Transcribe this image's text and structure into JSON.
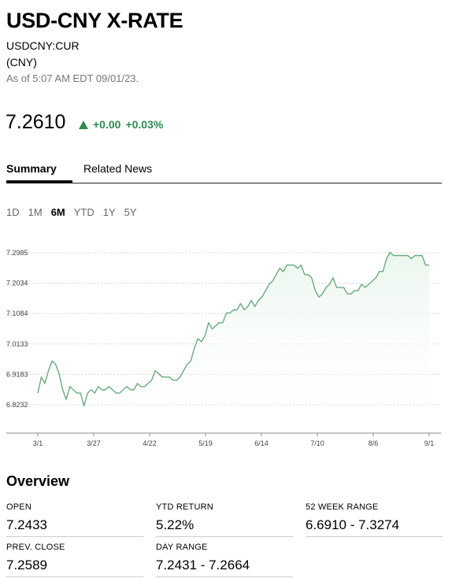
{
  "header": {
    "title": "USD-CNY X-RATE",
    "ticker": "USDCNY:CUR",
    "currency": "(CNY)",
    "as_of": "As of 5:07 AM EDT 09/01/23."
  },
  "quote": {
    "price": "7.2610",
    "change": "+0.00",
    "change_pct": "+0.03%",
    "up_color": "#2d8a4f",
    "direction_icon": "triangle-up-icon"
  },
  "tabs": [
    {
      "label": "Summary",
      "active": true
    },
    {
      "label": "Related News",
      "active": false
    }
  ],
  "ranges": [
    {
      "label": "1D",
      "active": false
    },
    {
      "label": "1M",
      "active": false
    },
    {
      "label": "6M",
      "active": true
    },
    {
      "label": "YTD",
      "active": false
    },
    {
      "label": "1Y",
      "active": false
    },
    {
      "label": "5Y",
      "active": false
    }
  ],
  "chart_data": {
    "type": "area",
    "ylim": [
      6.8,
      7.32
    ],
    "y_ticks": [
      "7.2985",
      "7.2034",
      "7.1084",
      "7.0133",
      "6.9183",
      "6.8232"
    ],
    "x_ticks": [
      "3/1",
      "3/27",
      "4/22",
      "5/19",
      "6/14",
      "7/10",
      "8/6",
      "9/1"
    ],
    "line_color": "#6aaa7e",
    "fill_color": "#eaf6ee",
    "grid": true,
    "series": [
      {
        "values": [
          6.86,
          6.91,
          6.89,
          6.93,
          6.96,
          6.95,
          6.92,
          6.87,
          6.84,
          6.88,
          6.87,
          6.86,
          6.86,
          6.82,
          6.86,
          6.87,
          6.86,
          6.88,
          6.87,
          6.87,
          6.88,
          6.87,
          6.86,
          6.86,
          6.87,
          6.88,
          6.87,
          6.87,
          6.89,
          6.88,
          6.88,
          6.89,
          6.9,
          6.93,
          6.92,
          6.91,
          6.91,
          6.91,
          6.9,
          6.9,
          6.91,
          6.93,
          6.95,
          6.96,
          7.0,
          7.03,
          7.02,
          7.04,
          7.08,
          7.06,
          7.07,
          7.08,
          7.08,
          7.11,
          7.11,
          7.12,
          7.12,
          7.14,
          7.12,
          7.13,
          7.15,
          7.13,
          7.15,
          7.16,
          7.18,
          7.2,
          7.21,
          7.23,
          7.25,
          7.24,
          7.26,
          7.26,
          7.26,
          7.25,
          7.26,
          7.23,
          7.23,
          7.22,
          7.18,
          7.16,
          7.17,
          7.19,
          7.2,
          7.22,
          7.19,
          7.19,
          7.19,
          7.17,
          7.17,
          7.18,
          7.18,
          7.2,
          7.19,
          7.2,
          7.21,
          7.22,
          7.24,
          7.24,
          7.28,
          7.3,
          7.29,
          7.29,
          7.29,
          7.29,
          7.29,
          7.28,
          7.29,
          7.29,
          7.29,
          7.26,
          7.26
        ]
      }
    ]
  },
  "overview": {
    "title": "Overview",
    "stats": [
      {
        "label": "OPEN",
        "value": "7.2433"
      },
      {
        "label": "YTD RETURN",
        "value": "5.22%"
      },
      {
        "label": "52 WEEK RANGE",
        "value": "6.6910 - 7.3274"
      },
      {
        "label": "PREV. CLOSE",
        "value": "7.2589"
      },
      {
        "label": "DAY RANGE",
        "value": "7.2431 - 7.2664"
      }
    ]
  }
}
